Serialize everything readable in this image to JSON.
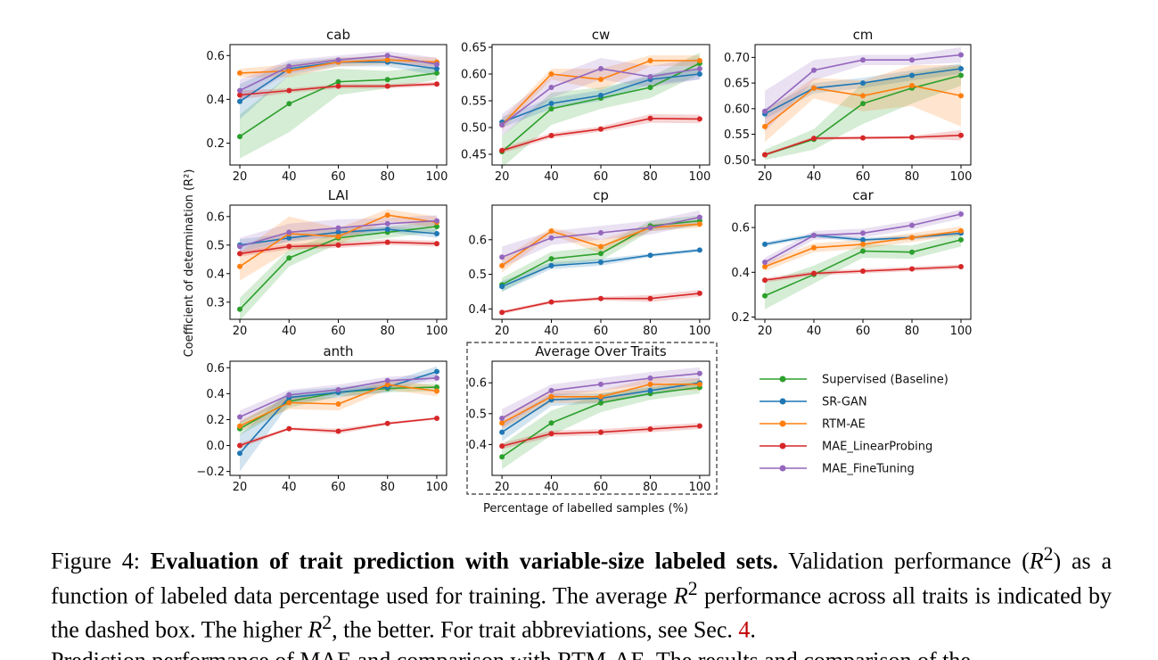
{
  "figure": {
    "y_axis_label": "Coefficient of determination (R²)",
    "x_axis_label": "Percentage of labelled samples (%)",
    "legend": [
      {
        "name": "Supervised (Baseline)",
        "color": "#2ca02c"
      },
      {
        "name": "SR-GAN",
        "color": "#1f77b4"
      },
      {
        "name": "RTM-AE",
        "color": "#ff7f0e"
      },
      {
        "name": "MAE_LinearProbing",
        "color": "#d62728"
      },
      {
        "name": "MAE_FineTuning",
        "color": "#9467bd"
      }
    ]
  },
  "chart_data": [
    {
      "type": "line",
      "title": "cab",
      "x": [
        20,
        40,
        60,
        80,
        100
      ],
      "ylim": [
        0.1,
        0.65
      ],
      "yticks": [
        0.2,
        0.4,
        0.6
      ],
      "ytick_labels": [
        "0.2",
        "0.4",
        "0.6"
      ],
      "series": [
        {
          "name": "Supervised (Baseline)",
          "color": "#2ca02c",
          "values": [
            0.23,
            0.38,
            0.48,
            0.49,
            0.52
          ],
          "band": [
            0.1,
            0.13,
            0.06,
            0.04,
            0.03
          ]
        },
        {
          "name": "SR-GAN",
          "color": "#1f77b4",
          "values": [
            0.39,
            0.54,
            0.57,
            0.57,
            0.54
          ],
          "band": [
            0.08,
            0.03,
            0.02,
            0.02,
            0.03
          ]
        },
        {
          "name": "RTM-AE",
          "color": "#ff7f0e",
          "values": [
            0.52,
            0.53,
            0.57,
            0.58,
            0.57
          ],
          "band": [
            0.02,
            0.03,
            0.02,
            0.02,
            0.02
          ]
        },
        {
          "name": "MAE_LinearProbing",
          "color": "#d62728",
          "values": [
            0.42,
            0.44,
            0.46,
            0.46,
            0.47
          ],
          "band": [
            0.02,
            0.01,
            0.01,
            0.01,
            0.01
          ]
        },
        {
          "name": "MAE_FineTuning",
          "color": "#9467bd",
          "values": [
            0.44,
            0.55,
            0.58,
            0.6,
            0.56
          ],
          "band": [
            0.05,
            0.03,
            0.02,
            0.02,
            0.03
          ]
        }
      ]
    },
    {
      "type": "line",
      "title": "cw",
      "x": [
        20,
        40,
        60,
        80,
        100
      ],
      "ylim": [
        0.43,
        0.655
      ],
      "yticks": [
        0.45,
        0.5,
        0.55,
        0.6,
        0.65
      ],
      "ytick_labels": [
        "0.45",
        "0.50",
        "0.55",
        "0.60",
        "0.65"
      ],
      "series": [
        {
          "name": "Supervised (Baseline)",
          "color": "#2ca02c",
          "values": [
            0.455,
            0.535,
            0.555,
            0.575,
            0.62
          ],
          "band": [
            0.03,
            0.03,
            0.02,
            0.02,
            0.02
          ]
        },
        {
          "name": "SR-GAN",
          "color": "#1f77b4",
          "values": [
            0.51,
            0.545,
            0.56,
            0.59,
            0.6
          ],
          "band": [
            0.01,
            0.01,
            0.01,
            0.01,
            0.01
          ]
        },
        {
          "name": "RTM-AE",
          "color": "#ff7f0e",
          "values": [
            0.505,
            0.6,
            0.59,
            0.625,
            0.625
          ],
          "band": [
            0.01,
            0.01,
            0.02,
            0.01,
            0.01
          ]
        },
        {
          "name": "MAE_LinearProbing",
          "color": "#d62728",
          "values": [
            0.457,
            0.485,
            0.497,
            0.517,
            0.516
          ],
          "band": [
            0.005,
            0.005,
            0.005,
            0.008,
            0.008
          ]
        },
        {
          "name": "MAE_FineTuning",
          "color": "#9467bd",
          "values": [
            0.505,
            0.575,
            0.61,
            0.595,
            0.61
          ],
          "band": [
            0.02,
            0.02,
            0.02,
            0.02,
            0.02
          ]
        }
      ]
    },
    {
      "type": "line",
      "title": "cm",
      "x": [
        20,
        40,
        60,
        80,
        100
      ],
      "ylim": [
        0.49,
        0.725
      ],
      "yticks": [
        0.5,
        0.55,
        0.6,
        0.65,
        0.7
      ],
      "ytick_labels": [
        "0.50",
        "0.55",
        "0.60",
        "0.65",
        "0.70"
      ],
      "series": [
        {
          "name": "Supervised (Baseline)",
          "color": "#2ca02c",
          "values": [
            0.51,
            0.54,
            0.61,
            0.64,
            0.665
          ],
          "band": [
            0.01,
            0.02,
            0.04,
            0.03,
            0.02
          ]
        },
        {
          "name": "SR-GAN",
          "color": "#1f77b4",
          "values": [
            0.59,
            0.64,
            0.65,
            0.665,
            0.678
          ],
          "band": [
            0.01,
            0.01,
            0.01,
            0.01,
            0.01
          ]
        },
        {
          "name": "RTM-AE",
          "color": "#ff7f0e",
          "values": [
            0.565,
            0.64,
            0.625,
            0.645,
            0.625
          ],
          "band": [
            0.03,
            0.02,
            0.03,
            0.04,
            0.06
          ]
        },
        {
          "name": "MAE_LinearProbing",
          "color": "#d62728",
          "values": [
            0.51,
            0.542,
            0.543,
            0.544,
            0.548
          ],
          "band": [
            0.003,
            0.003,
            0.003,
            0.003,
            0.01
          ]
        },
        {
          "name": "MAE_FineTuning",
          "color": "#9467bd",
          "values": [
            0.595,
            0.675,
            0.695,
            0.695,
            0.705
          ],
          "band": [
            0.04,
            0.02,
            0.01,
            0.01,
            0.015
          ]
        }
      ]
    },
    {
      "type": "line",
      "title": "LAI",
      "x": [
        20,
        40,
        60,
        80,
        100
      ],
      "ylim": [
        0.24,
        0.64
      ],
      "yticks": [
        0.3,
        0.4,
        0.5,
        0.6
      ],
      "ytick_labels": [
        "0.3",
        "0.4",
        "0.5",
        "0.6"
      ],
      "series": [
        {
          "name": "Supervised (Baseline)",
          "color": "#2ca02c",
          "values": [
            0.275,
            0.455,
            0.525,
            0.545,
            0.565
          ],
          "band": [
            0.04,
            0.03,
            0.02,
            0.02,
            0.02
          ]
        },
        {
          "name": "SR-GAN",
          "color": "#1f77b4",
          "values": [
            0.5,
            0.525,
            0.545,
            0.555,
            0.54
          ],
          "band": [
            0.02,
            0.015,
            0.015,
            0.01,
            0.015
          ]
        },
        {
          "name": "RTM-AE",
          "color": "#ff7f0e",
          "values": [
            0.425,
            0.54,
            0.53,
            0.605,
            0.58
          ],
          "band": [
            0.05,
            0.06,
            0.03,
            0.02,
            0.02
          ]
        },
        {
          "name": "MAE_LinearProbing",
          "color": "#d62728",
          "values": [
            0.47,
            0.495,
            0.5,
            0.51,
            0.505
          ],
          "band": [
            0.01,
            0.01,
            0.01,
            0.01,
            0.01
          ]
        },
        {
          "name": "MAE_FineTuning",
          "color": "#9467bd",
          "values": [
            0.495,
            0.545,
            0.56,
            0.575,
            0.585
          ],
          "band": [
            0.03,
            0.03,
            0.03,
            0.02,
            0.02
          ]
        }
      ]
    },
    {
      "type": "line",
      "title": "cp",
      "x": [
        20,
        40,
        60,
        80,
        100
      ],
      "ylim": [
        0.37,
        0.7
      ],
      "yticks": [
        0.4,
        0.5,
        0.6
      ],
      "ytick_labels": [
        "0.4",
        "0.5",
        "0.6"
      ],
      "series": [
        {
          "name": "Supervised (Baseline)",
          "color": "#2ca02c",
          "values": [
            0.47,
            0.545,
            0.56,
            0.64,
            0.655
          ],
          "band": [
            0.02,
            0.02,
            0.02,
            0.015,
            0.015
          ]
        },
        {
          "name": "SR-GAN",
          "color": "#1f77b4",
          "values": [
            0.465,
            0.525,
            0.535,
            0.555,
            0.57
          ],
          "band": [
            0.015,
            0.01,
            0.01,
            0.005,
            0.005
          ]
        },
        {
          "name": "RTM-AE",
          "color": "#ff7f0e",
          "values": [
            0.525,
            0.625,
            0.58,
            0.635,
            0.645
          ],
          "band": [
            0.02,
            0.01,
            0.02,
            0.01,
            0.01
          ]
        },
        {
          "name": "MAE_LinearProbing",
          "color": "#d62728",
          "values": [
            0.39,
            0.42,
            0.43,
            0.43,
            0.445
          ],
          "band": [
            0.005,
            0.005,
            0.005,
            0.01,
            0.01
          ]
        },
        {
          "name": "MAE_FineTuning",
          "color": "#9467bd",
          "values": [
            0.55,
            0.605,
            0.62,
            0.635,
            0.665
          ],
          "band": [
            0.03,
            0.02,
            0.02,
            0.02,
            0.02
          ]
        }
      ]
    },
    {
      "type": "line",
      "title": "car",
      "x": [
        20,
        40,
        60,
        80,
        100
      ],
      "ylim": [
        0.19,
        0.7
      ],
      "yticks": [
        0.2,
        0.4,
        0.6
      ],
      "ytick_labels": [
        "0.2",
        "0.4",
        "0.6"
      ],
      "series": [
        {
          "name": "Supervised (Baseline)",
          "color": "#2ca02c",
          "values": [
            0.295,
            0.39,
            0.495,
            0.49,
            0.545
          ],
          "band": [
            0.06,
            0.04,
            0.03,
            0.03,
            0.03
          ]
        },
        {
          "name": "SR-GAN",
          "color": "#1f77b4",
          "values": [
            0.525,
            0.565,
            0.545,
            0.555,
            0.575
          ],
          "band": [
            0.01,
            0.01,
            0.01,
            0.01,
            0.01
          ]
        },
        {
          "name": "RTM-AE",
          "color": "#ff7f0e",
          "values": [
            0.425,
            0.51,
            0.525,
            0.555,
            0.585
          ],
          "band": [
            0.02,
            0.02,
            0.02,
            0.02,
            0.02
          ]
        },
        {
          "name": "MAE_LinearProbing",
          "color": "#d62728",
          "values": [
            0.365,
            0.395,
            0.405,
            0.415,
            0.425
          ],
          "band": [
            0.01,
            0.01,
            0.01,
            0.01,
            0.01
          ]
        },
        {
          "name": "MAE_FineTuning",
          "color": "#9467bd",
          "values": [
            0.445,
            0.565,
            0.575,
            0.61,
            0.66
          ],
          "band": [
            0.02,
            0.02,
            0.02,
            0.02,
            0.02
          ]
        }
      ]
    },
    {
      "type": "line",
      "title": "anth",
      "x": [
        20,
        40,
        60,
        80,
        100
      ],
      "ylim": [
        -0.23,
        0.65
      ],
      "yticks": [
        -0.2,
        0.0,
        0.2,
        0.4,
        0.6
      ],
      "ytick_labels": [
        "−0.2",
        "0.0",
        "0.2",
        "0.4",
        "0.6"
      ],
      "series": [
        {
          "name": "Supervised (Baseline)",
          "color": "#2ca02c",
          "values": [
            0.13,
            0.34,
            0.41,
            0.44,
            0.45
          ],
          "band": [
            0.05,
            0.05,
            0.03,
            0.03,
            0.03
          ]
        },
        {
          "name": "SR-GAN",
          "color": "#1f77b4",
          "values": [
            -0.06,
            0.37,
            0.41,
            0.45,
            0.57
          ],
          "band": [
            0.14,
            0.05,
            0.04,
            0.04,
            0.04
          ]
        },
        {
          "name": "RTM-AE",
          "color": "#ff7f0e",
          "values": [
            0.15,
            0.33,
            0.32,
            0.47,
            0.42
          ],
          "band": [
            0.04,
            0.05,
            0.05,
            0.04,
            0.04
          ]
        },
        {
          "name": "MAE_LinearProbing",
          "color": "#d62728",
          "values": [
            0.0,
            0.13,
            0.11,
            0.17,
            0.21
          ],
          "band": [
            0.02,
            0.01,
            0.02,
            0.01,
            0.01
          ]
        },
        {
          "name": "MAE_FineTuning",
          "color": "#9467bd",
          "values": [
            0.22,
            0.39,
            0.43,
            0.5,
            0.52
          ],
          "band": [
            0.05,
            0.04,
            0.04,
            0.03,
            0.03
          ]
        }
      ]
    },
    {
      "type": "line",
      "title": "Average Over Traits",
      "x": [
        20,
        40,
        60,
        80,
        100
      ],
      "ylim": [
        0.3,
        0.67
      ],
      "yticks": [
        0.4,
        0.5,
        0.6
      ],
      "ytick_labels": [
        "0.4",
        "0.5",
        "0.6"
      ],
      "series": [
        {
          "name": "Supervised (Baseline)",
          "color": "#2ca02c",
          "values": [
            0.36,
            0.47,
            0.535,
            0.565,
            0.585
          ],
          "band": [
            0.04,
            0.04,
            0.03,
            0.02,
            0.02
          ]
        },
        {
          "name": "SR-GAN",
          "color": "#1f77b4",
          "values": [
            0.44,
            0.545,
            0.55,
            0.575,
            0.6
          ],
          "band": [
            0.03,
            0.02,
            0.015,
            0.015,
            0.015
          ]
        },
        {
          "name": "RTM-AE",
          "color": "#ff7f0e",
          "values": [
            0.47,
            0.555,
            0.555,
            0.595,
            0.595
          ],
          "band": [
            0.02,
            0.02,
            0.02,
            0.02,
            0.02
          ]
        },
        {
          "name": "MAE_LinearProbing",
          "color": "#d62728",
          "values": [
            0.395,
            0.435,
            0.44,
            0.45,
            0.46
          ],
          "band": [
            0.01,
            0.01,
            0.01,
            0.01,
            0.01
          ]
        },
        {
          "name": "MAE_FineTuning",
          "color": "#9467bd",
          "values": [
            0.485,
            0.575,
            0.595,
            0.615,
            0.63
          ],
          "band": [
            0.03,
            0.02,
            0.02,
            0.02,
            0.02
          ]
        }
      ]
    }
  ],
  "caption": {
    "label": "Figure 4:",
    "bold_title": "Evaluation of trait prediction with variable-size labeled sets.",
    "text_1": "Validation performance (",
    "r2_a": "R",
    "sup_a": "2",
    "text_2": ") as a function of labeled data percentage used for training. The average ",
    "r2_b": "R",
    "sup_b": "2",
    "text_3": " performance across all traits is indicated by the dashed box. The higher ",
    "r2_c": "R",
    "sup_c": "2",
    "text_4": ", the better. For trait abbreviations, see Sec. ",
    "ref": "4",
    "text_5": "."
  },
  "next_line": "Prediction performance of MAE and comparison with RTM-AE. The results and comparison of the"
}
